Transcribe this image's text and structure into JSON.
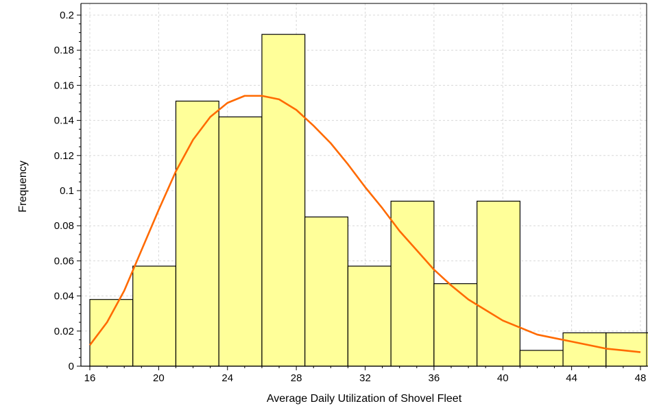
{
  "chart_data": {
    "type": "bar",
    "title": "",
    "xlabel": "Average Daily Utilization of Shovel Fleet",
    "ylabel": "Frequency",
    "xlim": [
      15.6,
      48.2
    ],
    "ylim": [
      0,
      0.2
    ],
    "grid": true,
    "bin_width": 2.5,
    "bins": [
      {
        "start": 16.0,
        "end": 18.5,
        "value": 0.038
      },
      {
        "start": 18.5,
        "end": 21.0,
        "value": 0.057
      },
      {
        "start": 21.0,
        "end": 23.5,
        "value": 0.151
      },
      {
        "start": 23.5,
        "end": 26.0,
        "value": 0.142
      },
      {
        "start": 26.0,
        "end": 28.5,
        "value": 0.189
      },
      {
        "start": 28.5,
        "end": 31.0,
        "value": 0.085
      },
      {
        "start": 31.0,
        "end": 33.5,
        "value": 0.057
      },
      {
        "start": 33.5,
        "end": 36.0,
        "value": 0.094
      },
      {
        "start": 36.0,
        "end": 38.5,
        "value": 0.047
      },
      {
        "start": 38.5,
        "end": 41.0,
        "value": 0.094
      },
      {
        "start": 41.0,
        "end": 43.5,
        "value": 0.009
      },
      {
        "start": 43.5,
        "end": 46.0,
        "value": 0.019
      },
      {
        "start": 46.0,
        "end": 48.5,
        "value": 0.019
      }
    ],
    "x_ticks": [
      16,
      20,
      24,
      28,
      32,
      36,
      40,
      44,
      48
    ],
    "y_ticks": [
      0,
      0.02,
      0.04,
      0.06,
      0.08,
      0.1,
      0.12,
      0.14,
      0.16,
      0.18,
      0.2
    ],
    "y_tick_labels": [
      "0",
      "0.02",
      "0.04",
      "0.06",
      "0.08",
      "0.1",
      "0.12",
      "0.14",
      "0.16",
      "0.18",
      "0.2"
    ],
    "density_curve": {
      "x": [
        16,
        17,
        18,
        19,
        20,
        21,
        22,
        23,
        24,
        25,
        26,
        27,
        28,
        29,
        30,
        31,
        32,
        33,
        34,
        35,
        36,
        37,
        38,
        39,
        40,
        41,
        42,
        43,
        44,
        45,
        46,
        47,
        48
      ],
      "y": [
        0.012,
        0.025,
        0.043,
        0.066,
        0.089,
        0.111,
        0.129,
        0.142,
        0.15,
        0.154,
        0.154,
        0.152,
        0.146,
        0.137,
        0.127,
        0.115,
        0.102,
        0.09,
        0.077,
        0.066,
        0.055,
        0.046,
        0.038,
        0.032,
        0.026,
        0.022,
        0.018,
        0.016,
        0.014,
        0.012,
        0.01,
        0.009,
        0.008
      ]
    },
    "colors": {
      "bar_fill": "#ffff99",
      "bar_stroke": "#000000",
      "curve": "#ff6a00",
      "grid": "#d8d8d8"
    }
  }
}
